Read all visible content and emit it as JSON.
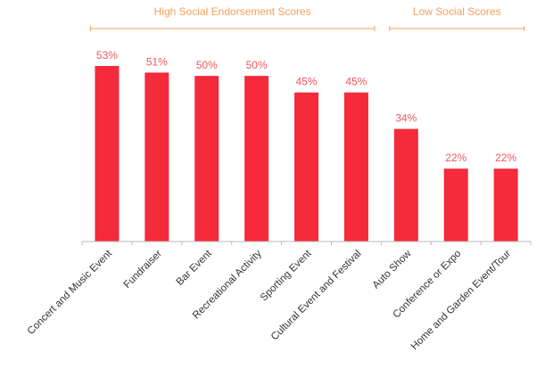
{
  "chart_data": {
    "type": "bar",
    "categories": [
      "Concert and Music Event",
      "Fundraiser",
      "Bar Event",
      "Recreational Activity",
      "Sporting Event",
      "Cultural Event and Festival",
      "Auto Show",
      "Conference or Expo",
      "Home and Garden Event/Tour"
    ],
    "values": [
      53,
      51,
      50,
      50,
      45,
      45,
      34,
      22,
      22
    ],
    "value_labels": [
      "53%",
      "51%",
      "50%",
      "50%",
      "45%",
      "45%",
      "34%",
      "22%",
      "22%"
    ],
    "ylim": [
      0,
      53
    ],
    "grid": false,
    "groups": [
      {
        "label": "High Social Endorsement Scores",
        "from_index": 0,
        "to_index": 5
      },
      {
        "label": "Low Social Scores",
        "from_index": 6,
        "to_index": 8
      }
    ]
  },
  "colors": {
    "bar": "#f52a3a",
    "value_label": "#f0575f",
    "bracket": "#f5a05a",
    "axis": "#bbbbbb",
    "category_label": "#333333"
  }
}
